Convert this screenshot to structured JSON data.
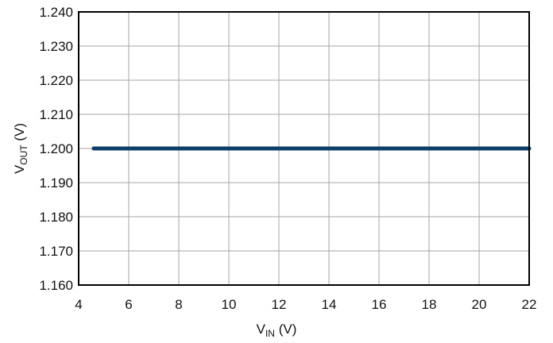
{
  "chart_data": {
    "type": "line",
    "title": "",
    "xlabel": {
      "main": "V",
      "sub": "IN",
      "unit": " (V)"
    },
    "ylabel": {
      "main": "V",
      "sub": "OUT",
      "unit": " (V)"
    },
    "xlim": [
      4,
      22
    ],
    "ylim": [
      1.16,
      1.24
    ],
    "x_ticks": [
      4,
      6,
      8,
      10,
      12,
      14,
      16,
      18,
      20,
      22
    ],
    "x_tick_labels": [
      "4",
      "6",
      "8",
      "10",
      "12",
      "14",
      "16",
      "18",
      "20",
      "22"
    ],
    "y_ticks": [
      1.16,
      1.17,
      1.18,
      1.19,
      1.2,
      1.21,
      1.22,
      1.23,
      1.24
    ],
    "y_tick_labels": [
      "1.160",
      "1.170",
      "1.180",
      "1.190",
      "1.200",
      "1.210",
      "1.220",
      "1.230",
      "1.240"
    ],
    "grid": true,
    "legend": "none",
    "series": [
      {
        "color": "#0f3f6b",
        "x": [
          4.6,
          22
        ],
        "y": [
          1.2,
          1.2
        ]
      }
    ]
  }
}
